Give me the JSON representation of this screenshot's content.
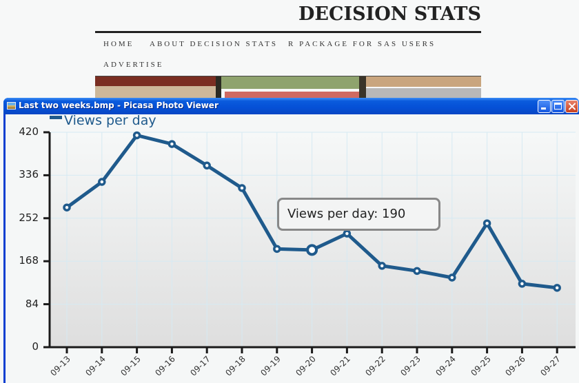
{
  "blog": {
    "title": "DECISION STATS",
    "nav": [
      {
        "label": "HOME"
      },
      {
        "label": "ABOUT DECISION STATS"
      },
      {
        "label": "R PACKAGE FOR SAS USERS"
      },
      {
        "label": "ADVERTISE"
      }
    ]
  },
  "window": {
    "title": "Last two weeks.bmp - Picasa Photo Viewer",
    "icon": "image-file-icon",
    "controls": {
      "minimize": "minimize-icon",
      "maximize": "maximize-icon",
      "close": "close-icon"
    }
  },
  "tooltip": {
    "text": "Views per day: 190"
  },
  "colors": {
    "series": "#1f5a8c",
    "axis": "#1a1a1a",
    "grid": "#d6eaf3",
    "titlebar": "#0550d6"
  },
  "chart_data": {
    "type": "line",
    "title": "",
    "xlabel": "",
    "ylabel": "",
    "legend": [
      "Views per day"
    ],
    "legend_position": "top-left",
    "grid": true,
    "ylim": [
      0,
      420
    ],
    "yticks": [
      "0",
      "84",
      "168",
      "252",
      "336",
      "420"
    ],
    "categories": [
      "09-13",
      "09-14",
      "09-15",
      "09-16",
      "09-17",
      "09-18",
      "09-19",
      "09-20",
      "09-21",
      "09-22",
      "09-23",
      "09-24",
      "09-25",
      "09-26",
      "09-27"
    ],
    "series": [
      {
        "name": "Views per day",
        "values": [
          273,
          323,
          414,
          397,
          355,
          311,
          192,
          190,
          222,
          159,
          149,
          136,
          242,
          124,
          116
        ]
      }
    ],
    "annotations": [
      {
        "category": "09-20",
        "text": "Views per day: 190",
        "highlighted": true
      }
    ]
  }
}
